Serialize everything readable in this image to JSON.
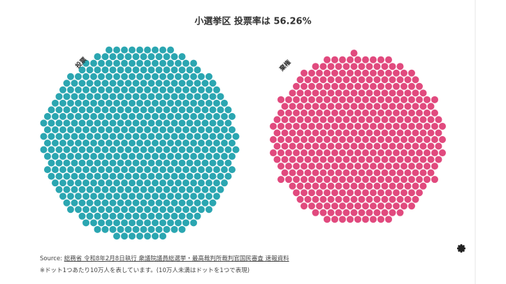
{
  "chart_data": {
    "type": "dot",
    "title": "小選挙区 投票率は 56.26%",
    "categories": [
      "投票",
      "棄権"
    ],
    "values": [
      586,
      456
    ],
    "colors": [
      "#2ba6b1",
      "#e14a7e"
    ],
    "source_prefix": "Source:",
    "source_link": "総務省 令和8年2月8日執行 衆議院議員総選挙・最高裁判所裁判官国民審査 速報資料",
    "note": "※ドット1つあたり10万人を表しています。(10万人未満はドットを1つで表現)"
  }
}
